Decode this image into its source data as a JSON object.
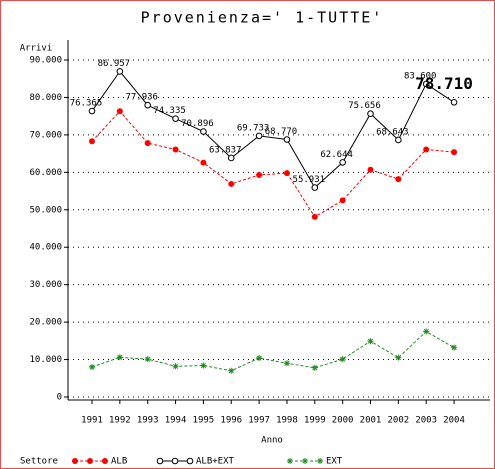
{
  "chart_data": {
    "type": "line",
    "title": "Provenienza=' 1-TUTTE'",
    "y_label": "Arrivi",
    "x_label": "Anno",
    "legend_title": "Settore",
    "categories": [
      "1991",
      "1992",
      "1993",
      "1994",
      "1995",
      "1996",
      "1997",
      "1998",
      "1999",
      "2000",
      "2001",
      "2002",
      "2003",
      "2004"
    ],
    "series": [
      {
        "name": "ALB",
        "color": "#ff0000",
        "marker": "dot",
        "dashed": true,
        "values": [
          68300,
          76300,
          67800,
          66100,
          62600,
          56900,
          59300,
          59800,
          48100,
          52500,
          60700,
          58200,
          66100,
          65400
        ]
      },
      {
        "name": "ALB+EXT",
        "color": "#000000",
        "marker": "circle",
        "dashed": false,
        "values": [
          76365,
          86957,
          77936,
          74335,
          70896,
          63837,
          69733,
          68770,
          55931,
          62644,
          75656,
          68643,
          83600,
          78710
        ],
        "value_labels": [
          "76.365",
          "86.957",
          "77.936",
          "74.335",
          "70.896",
          "63.837",
          "69.733",
          "68.770",
          "55.931",
          "62.644",
          "75.656",
          "68.643",
          "83.600",
          "78.710"
        ]
      },
      {
        "name": "EXT",
        "color": "#228b22",
        "marker": "star",
        "dashed": true,
        "values": [
          8000,
          10600,
          10100,
          8200,
          8400,
          7000,
          10400,
          9000,
          7800,
          10100,
          14900,
          10500,
          17500,
          13200
        ]
      }
    ],
    "ylim": [
      0,
      90000
    ],
    "yticks": [
      0,
      {
        "value": 10000,
        "label": "10.000"
      },
      {
        "value": 20000,
        "label": "20.000"
      },
      {
        "value": 30000,
        "label": "30.000"
      },
      {
        "value": 40000,
        "label": "40.000"
      },
      {
        "value": 50000,
        "label": "50.000"
      },
      {
        "value": 60000,
        "label": "60.000"
      },
      {
        "value": 70000,
        "label": "70.000"
      },
      {
        "value": 80000,
        "label": "80.000"
      },
      {
        "value": 90000,
        "label": "90.000"
      }
    ],
    "grid": true
  }
}
